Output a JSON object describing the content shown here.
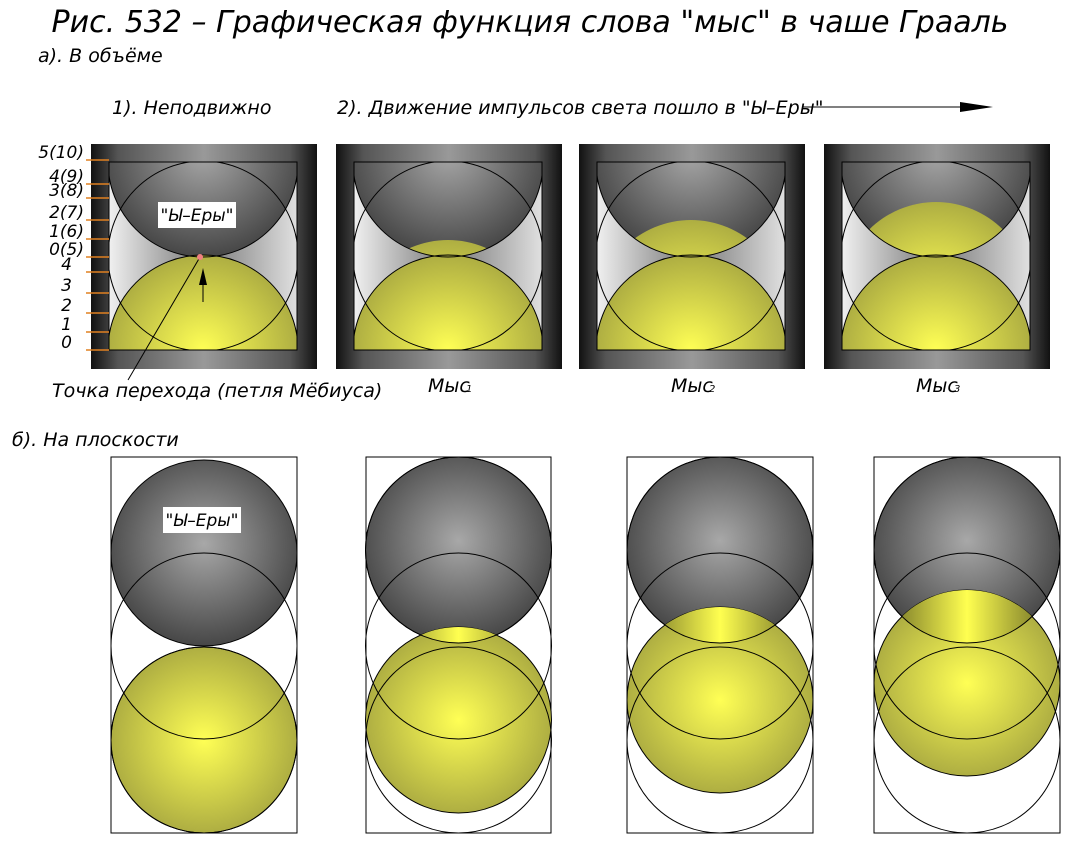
{
  "header": {
    "title": "Рис. 532 – Графическая функция слова \"мыс\" в чаше Грааль"
  },
  "section_a": {
    "label": "а). В объёме",
    "still": "1). Неподвижно",
    "motion": "2). Движение импульсов света пошло в \"Ы–Еры\"",
    "scale": [
      "5(10)",
      "4(9)",
      "3(8)",
      "2(7)",
      "1(6)",
      "0(5)",
      "4",
      "3",
      "2",
      "1",
      "0"
    ],
    "box_label": "\"Ы–Еры\"",
    "transition": "Точка перехода (петля Мёбиуса)",
    "captions": [
      {
        "text": "Мыс",
        "sub": "1"
      },
      {
        "text": "Мыс",
        "sub": "2"
      },
      {
        "text": "Мыс",
        "sub": "3"
      }
    ]
  },
  "section_b": {
    "label": "б). На плоскости",
    "box_label": "\"Ы–Еры\""
  }
}
